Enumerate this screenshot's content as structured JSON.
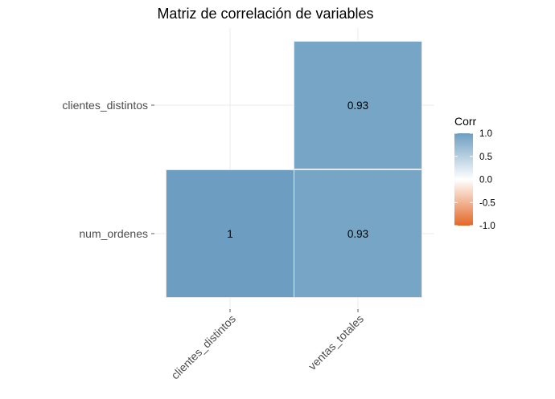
{
  "chart_data": {
    "type": "heatmap",
    "title": "Matriz de correlación de variables",
    "x_categories": [
      "clientes_distintos",
      "ventas_totales"
    ],
    "y_categories": [
      "num_ordenes",
      "clientes_distintos"
    ],
    "cells": [
      {
        "x": "clientes_distintos",
        "y": "num_ordenes",
        "value": 1,
        "label": "1"
      },
      {
        "x": "ventas_totales",
        "y": "num_ordenes",
        "value": 0.93,
        "label": "0.93"
      },
      {
        "x": "ventas_totales",
        "y": "clientes_distintos",
        "value": 0.93,
        "label": "0.93"
      }
    ],
    "legend": {
      "title": "Corr",
      "range": [
        -1,
        1
      ],
      "ticks": [
        "1.0",
        "0.5",
        "0.0",
        "-0.5",
        "-1.0"
      ],
      "tick_values": [
        1,
        0.5,
        0,
        -0.5,
        -1
      ],
      "colors": {
        "low": "#E46726",
        "mid": "#FFFFFF",
        "high": "#6D9EC1"
      }
    },
    "grid": true
  }
}
